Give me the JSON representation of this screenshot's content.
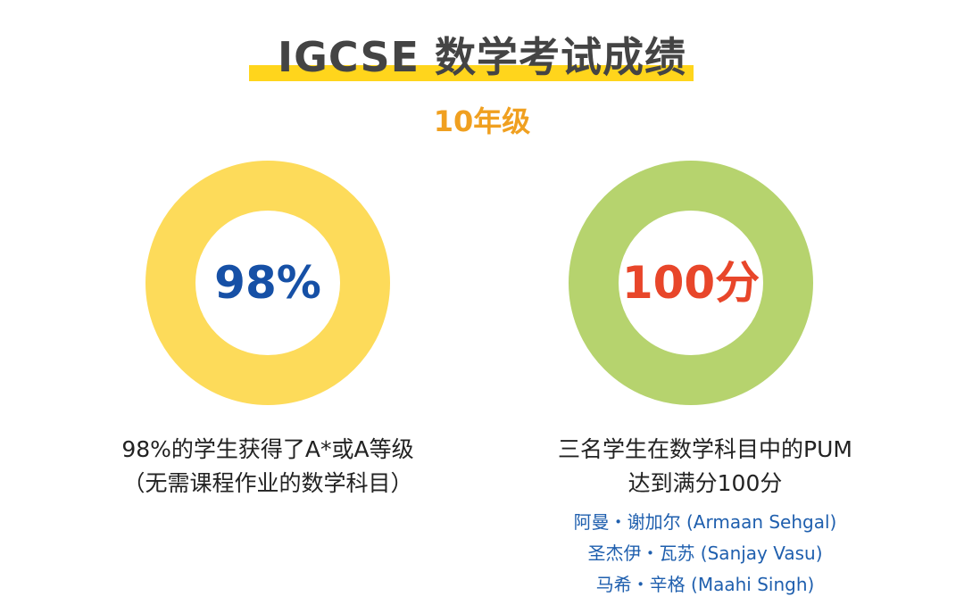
{
  "header": {
    "title": "IGCSE 数学考试成绩",
    "subtitle": "10年级"
  },
  "stats": [
    {
      "value": "98%",
      "caption_line1": "98%的学生获得了A*或A等级",
      "caption_line2": "（无需课程作业的数学科目）"
    },
    {
      "value": "100分",
      "caption_line1": "三名学生在数学科目中的PUM",
      "caption_line2": "达到满分100分",
      "students": [
        "阿曼・谢加尔 (Armaan Sehgal)",
        "圣杰伊・瓦苏 (Sanjay Vasu)",
        "马希・辛格 (Maahi Singh)"
      ]
    }
  ],
  "colors": {
    "title_bar": "#FFD51C",
    "subtitle": "#F0A020",
    "ring_left": "#FDDB5A",
    "ring_right": "#B6D36E",
    "value_left": "#1650A6",
    "value_right": "#E8462A",
    "names": "#1F5FAE"
  }
}
